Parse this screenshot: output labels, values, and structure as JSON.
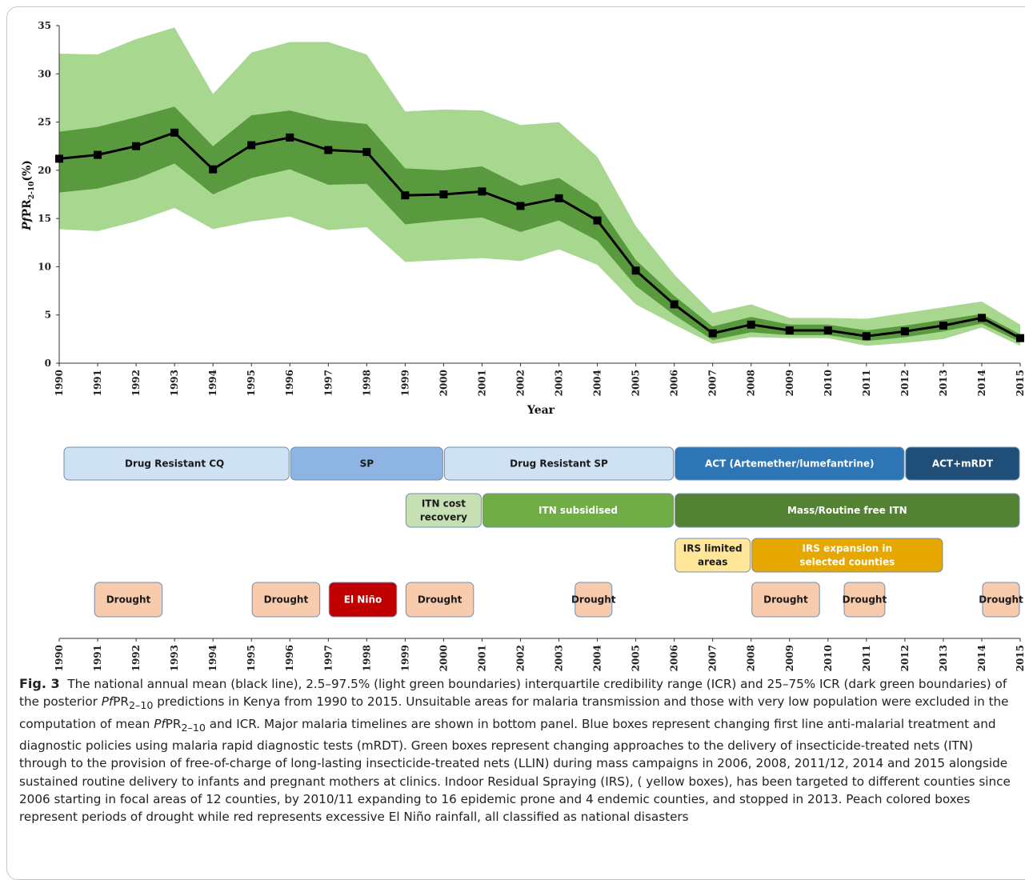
{
  "chart_data": {
    "type": "line",
    "title": "",
    "ylabel_parts": {
      "pre": "Pf",
      "mid": "PR",
      "sub": "2-10",
      "post": "(%)"
    },
    "xlabel": "Year",
    "ylim": [
      0,
      35
    ],
    "yticks": [
      0,
      5,
      10,
      15,
      20,
      25,
      30,
      35
    ],
    "x": [
      1990,
      1991,
      1992,
      1993,
      1994,
      1995,
      1996,
      1997,
      1998,
      1999,
      2000,
      2001,
      2002,
      2003,
      2004,
      2005,
      2006,
      2007,
      2008,
      2009,
      2010,
      2011,
      2012,
      2013,
      2014,
      2015
    ],
    "series": [
      {
        "role": "mean",
        "color": "#000000",
        "values": [
          21.2,
          21.6,
          22.5,
          23.9,
          20.1,
          22.6,
          23.4,
          22.1,
          21.9,
          17.4,
          17.5,
          17.8,
          16.3,
          17.1,
          14.8,
          9.6,
          6.1,
          3.1,
          4.0,
          3.4,
          3.4,
          2.8,
          3.3,
          3.9,
          4.7,
          2.6
        ]
      },
      {
        "role": "icr-2.5-97.5",
        "color": "#a8d790",
        "upper": [
          32.1,
          32.0,
          33.6,
          34.8,
          27.9,
          32.2,
          33.3,
          33.3,
          32.0,
          26.1,
          26.3,
          26.2,
          24.7,
          25.0,
          21.4,
          14.2,
          9.2,
          5.2,
          6.1,
          4.7,
          4.7,
          4.6,
          5.2,
          5.8,
          6.4,
          4.0
        ],
        "lower": [
          13.9,
          13.7,
          14.7,
          16.1,
          13.9,
          14.7,
          15.2,
          13.8,
          14.1,
          10.5,
          10.7,
          10.9,
          10.6,
          11.8,
          10.2,
          6.1,
          4.0,
          2.0,
          2.7,
          2.6,
          2.6,
          1.8,
          2.1,
          2.5,
          3.7,
          1.8
        ]
      },
      {
        "role": "icr-25-75",
        "color": "#5a9a3e",
        "upper": [
          24.0,
          24.5,
          25.5,
          26.6,
          22.5,
          25.7,
          26.2,
          25.2,
          24.8,
          20.2,
          20.0,
          20.4,
          18.4,
          19.2,
          16.6,
          10.7,
          7.0,
          3.8,
          4.8,
          4.0,
          4.0,
          3.4,
          3.9,
          4.5,
          5.1,
          3.0
        ],
        "lower": [
          17.7,
          18.1,
          19.1,
          20.7,
          17.5,
          19.2,
          20.1,
          18.5,
          18.6,
          14.4,
          14.8,
          15.1,
          13.6,
          14.8,
          12.7,
          8.0,
          5.0,
          2.4,
          3.2,
          2.9,
          2.9,
          2.3,
          2.7,
          3.3,
          4.1,
          2.2
        ]
      }
    ]
  },
  "timeline": {
    "rows": [
      {
        "name": "treatment",
        "boxes": [
          {
            "label": "Drug Resistant CQ",
            "from": 1990,
            "to": 1996,
            "fill": "#cfe2f3",
            "text": "#1a1a1a"
          },
          {
            "label": "SP",
            "from": 1996,
            "to": 2000,
            "fill": "#8db4e2",
            "text": "#1a1a1a"
          },
          {
            "label": "Drug Resistant SP",
            "from": 2000,
            "to": 2006,
            "fill": "#cfe2f3",
            "text": "#1a1a1a"
          },
          {
            "label": "ACT (Artemether/lumefantrine)",
            "from": 2006,
            "to": 2012,
            "fill": "#2e75b6",
            "text": "#ffffff"
          },
          {
            "label": "ACT+mRDT",
            "from": 2012,
            "to": 2015,
            "fill": "#1f4e79",
            "text": "#ffffff"
          }
        ]
      },
      {
        "name": "itn",
        "boxes": [
          {
            "label": "ITN cost recovery",
            "from": 1999,
            "to": 2001,
            "fill": "#c6e0b4",
            "text": "#1a1a1a"
          },
          {
            "label": "ITN subsidised",
            "from": 2001,
            "to": 2006,
            "fill": "#70ad47",
            "text": "#ffffff"
          },
          {
            "label": "Mass/Routine free ITN",
            "from": 2006,
            "to": 2015,
            "fill": "#548235",
            "text": "#ffffff"
          }
        ]
      },
      {
        "name": "irs",
        "boxes": [
          {
            "label": "IRS limited areas",
            "from": 2006,
            "to": 2008,
            "fill": "#ffe699",
            "text": "#1a1a1a"
          },
          {
            "label": "IRS expansion in selected counties",
            "from": 2008,
            "to": 2013,
            "fill": "#e6a700",
            "text": "#ffffff"
          }
        ]
      },
      {
        "name": "disasters",
        "boxes": [
          {
            "label": "Drought",
            "from": 1990.9,
            "to": 1992.7,
            "fill": "#f8cbad",
            "text": "#1a1a1a"
          },
          {
            "label": "Drought",
            "from": 1995.0,
            "to": 1996.8,
            "fill": "#f8cbad",
            "text": "#1a1a1a"
          },
          {
            "label": "El Niño",
            "from": 1997.0,
            "to": 1998.8,
            "fill": "#c00000",
            "text": "#ffffff"
          },
          {
            "label": "Drought",
            "from": 1999.0,
            "to": 2000.8,
            "fill": "#f8cbad",
            "text": "#1a1a1a"
          },
          {
            "label": "Drought",
            "from": 2003.4,
            "to": 2004.4,
            "fill": "#f8cbad",
            "text": "#1a1a1a"
          },
          {
            "label": "Drought",
            "from": 2008.0,
            "to": 2009.8,
            "fill": "#f8cbad",
            "text": "#1a1a1a"
          },
          {
            "label": "Drought",
            "from": 2010.4,
            "to": 2011.5,
            "fill": "#f8cbad",
            "text": "#1a1a1a"
          },
          {
            "label": "Drought",
            "from": 2014.0,
            "to": 2015.0,
            "fill": "#f8cbad",
            "text": "#1a1a1a"
          }
        ]
      }
    ]
  },
  "caption": {
    "fig_label": "Fig. 3",
    "t1": "The national annual mean (black line), 2.5–97.5% (light green boundaries) interquartile credibility range (ICR) and 25–75% ICR (dark green boundaries) of the posterior ",
    "pf": "Pf",
    "pr": "PR",
    "sub": "2–10",
    "t2": " predictions in Kenya from 1990 to 2015. Unsuitable areas for malaria transmission and those with very low population were excluded in the computation of mean ",
    "t3": " and ICR. Major malaria timelines are shown in bottom panel. Blue boxes represent changing first line anti-malarial treatment and diagnostic policies using malaria rapid diagnostic tests (mRDT). Green boxes represent changing approaches to the delivery of insecticide-treated nets (ITN) through to the provision of free-of-charge of long-lasting insecticide-treated nets (LLIN) during mass campaigns in 2006, 2008, 2011/12, 2014 and 2015 alongside sustained routine delivery to infants and pregnant mothers at clinics. Indoor Residual Spraying (IRS), ( yellow boxes), has been targeted to different counties since 2006 starting in focal areas of 12 counties, by 2010/11 expanding to 16 epidemic prone and 4 endemic counties, and stopped in 2013. Peach colored boxes represent periods of drought while red represents excessive El Niño rainfall, all classified as national disasters"
  }
}
